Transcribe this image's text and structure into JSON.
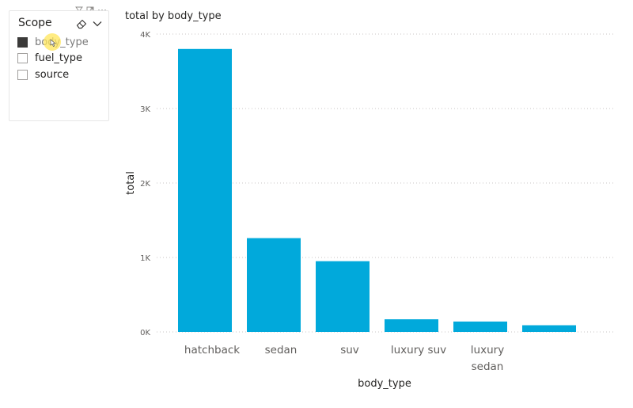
{
  "slicer": {
    "title": "Scope",
    "items": [
      {
        "label": "body_type",
        "checked": true
      },
      {
        "label": "fuel_type",
        "checked": false
      },
      {
        "label": "source",
        "checked": false
      }
    ],
    "header_icons": [
      "filter-icon",
      "focus-mode-icon",
      "more-options-icon"
    ],
    "clear_icon": "eraser-icon",
    "dropdown_icon": "chevron-down-icon"
  },
  "chart_data": {
    "type": "bar",
    "title": "total by body_type",
    "xlabel": "body_type",
    "ylabel": "total",
    "categories": [
      [
        "hatchback"
      ],
      [
        "sedan"
      ],
      [
        "suv"
      ],
      [
        "luxury suv"
      ],
      [
        "luxury",
        "sedan"
      ],
      [
        ""
      ]
    ],
    "values": [
      3800,
      1260,
      950,
      170,
      140,
      90
    ],
    "yticks": [
      0,
      1000,
      2000,
      3000,
      4000
    ],
    "ytick_labels": [
      "0K",
      "1K",
      "2K",
      "3K",
      "4K"
    ],
    "ylim": [
      0,
      4000
    ],
    "bar_color": "#01a9db",
    "grid": true
  }
}
